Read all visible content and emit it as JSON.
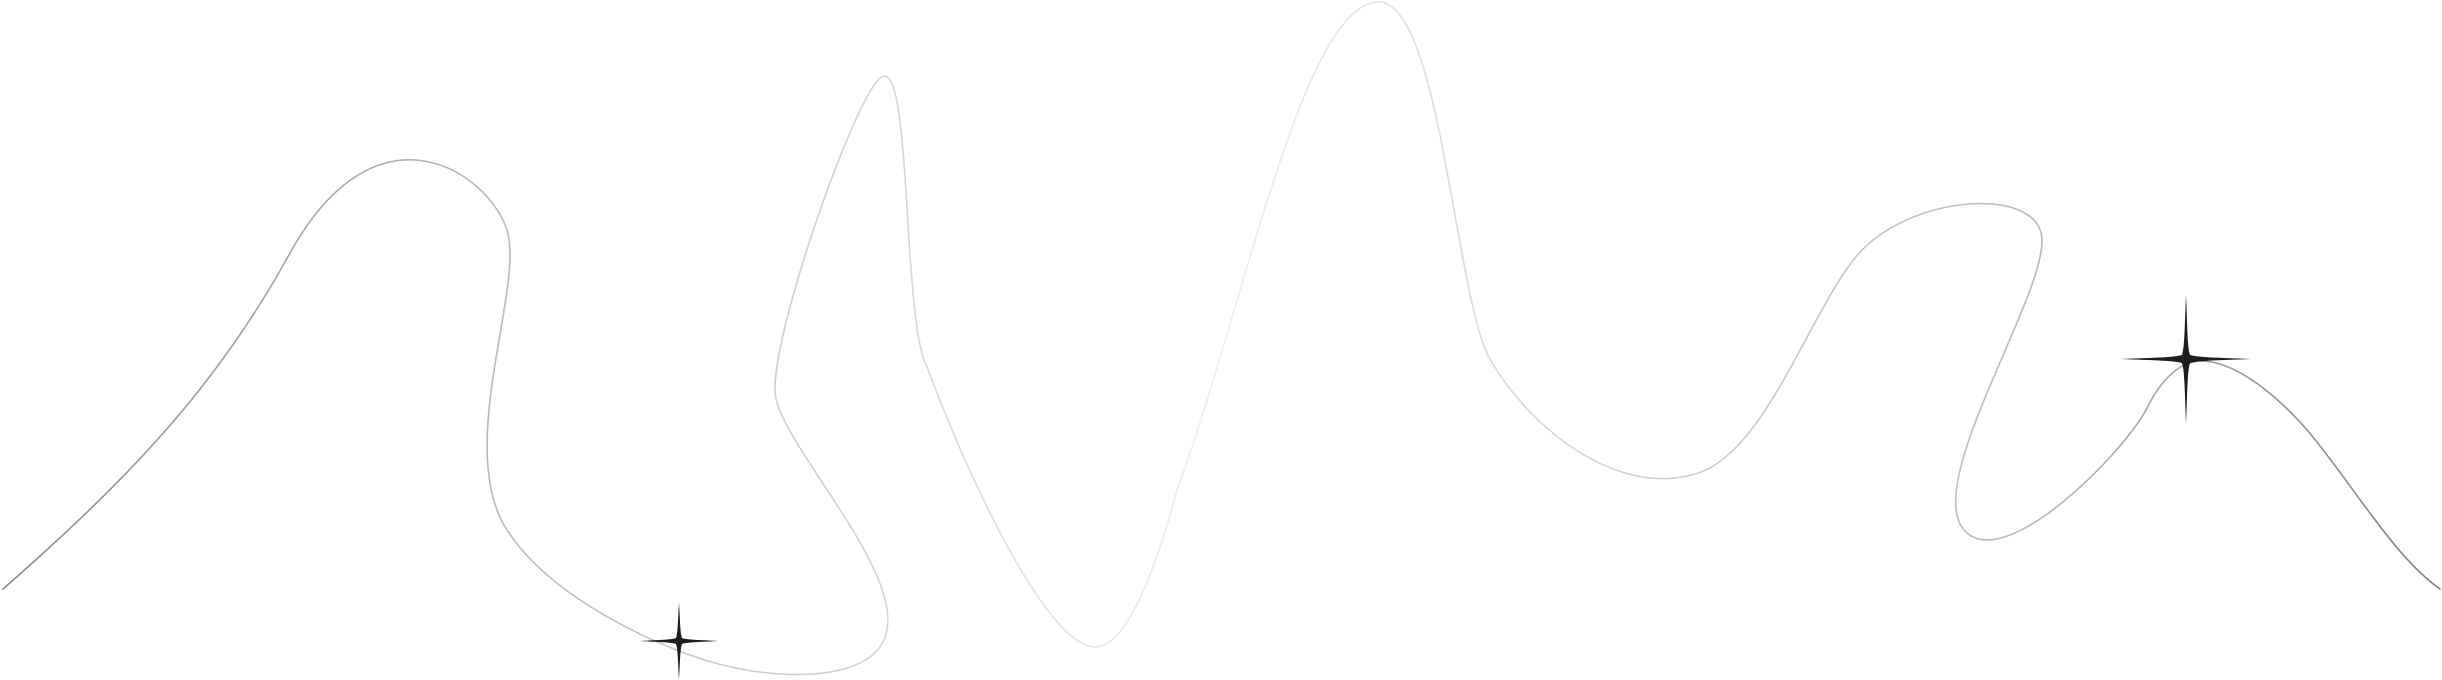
{
  "artwork": {
    "background_color": "#ffffff",
    "stroke_color_light": "#e8e8e8",
    "stroke_color_mid": "#b8b8b8",
    "stroke_color_dark": "#8a8a8a",
    "sparkle_color": "#111111",
    "icons": [
      "squiggle-line",
      "sparkle-icon",
      "sparkle-icon"
    ]
  }
}
